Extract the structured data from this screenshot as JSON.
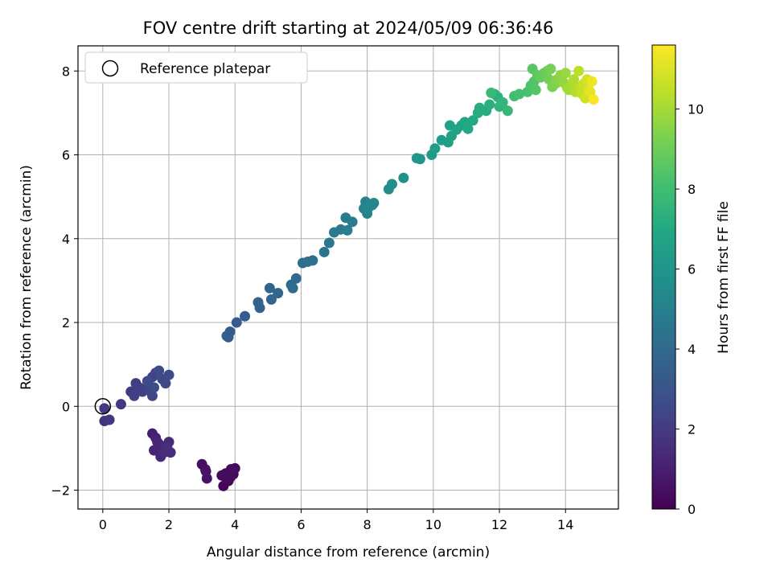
{
  "chart_data": {
    "type": "scatter",
    "title": "FOV centre drift starting at 2024/05/09 06:36:46",
    "xlabel": "Angular distance from reference (arcmin)",
    "ylabel": "Rotation from reference (arcmin)",
    "xlim": [
      -0.75,
      15.6
    ],
    "ylim": [
      -2.45,
      8.6
    ],
    "x_ticks": [
      0,
      2,
      4,
      6,
      8,
      10,
      12,
      14
    ],
    "y_ticks": [
      -2,
      0,
      2,
      4,
      6,
      8
    ],
    "grid": true,
    "legend": {
      "position": "top-left",
      "entries": [
        "Reference platepar"
      ]
    },
    "reference_point": {
      "x": 0,
      "y": 0
    },
    "colorbar": {
      "label": "Hours from first FF file",
      "colormap": "viridis",
      "range": [
        0,
        11.6
      ],
      "ticks": [
        0,
        2,
        4,
        6,
        8,
        10
      ]
    },
    "points": [
      [
        3.65,
        -1.9,
        0.1
      ],
      [
        3.8,
        -1.78,
        0.15
      ],
      [
        3.72,
        -1.6,
        0.2
      ],
      [
        3.9,
        -1.55,
        0.22
      ],
      [
        3.85,
        -1.7,
        0.25
      ],
      [
        3.95,
        -1.62,
        0.27
      ],
      [
        4.0,
        -1.48,
        0.3
      ],
      [
        3.75,
        -1.72,
        0.33
      ],
      [
        3.6,
        -1.65,
        0.36
      ],
      [
        3.88,
        -1.5,
        0.4
      ],
      [
        3.0,
        -1.38,
        0.45
      ],
      [
        3.1,
        -1.5,
        0.5
      ],
      [
        3.15,
        -1.72,
        0.55
      ],
      [
        3.12,
        -1.55,
        0.6
      ],
      [
        1.5,
        -0.65,
        1.0
      ],
      [
        1.6,
        -0.75,
        1.05
      ],
      [
        1.7,
        -0.9,
        1.1
      ],
      [
        1.8,
        -1.0,
        1.15
      ],
      [
        1.65,
        -0.85,
        1.2
      ],
      [
        1.55,
        -1.05,
        1.25
      ],
      [
        1.75,
        -1.2,
        1.3
      ],
      [
        1.9,
        -0.95,
        1.35
      ],
      [
        2.0,
        -0.85,
        1.4
      ],
      [
        2.05,
        -1.1,
        1.45
      ],
      [
        1.85,
        -1.1,
        1.5
      ],
      [
        1.95,
        -1.0,
        1.55
      ],
      [
        0.05,
        -0.35,
        1.75
      ],
      [
        0.2,
        -0.32,
        1.8
      ],
      [
        0.55,
        0.05,
        1.9
      ],
      [
        0.05,
        -0.05,
        1.85
      ],
      [
        0.85,
        0.35,
        2.0
      ],
      [
        1.0,
        0.55,
        2.05
      ],
      [
        1.1,
        0.45,
        2.1
      ],
      [
        1.2,
        0.35,
        2.15
      ],
      [
        0.95,
        0.25,
        2.2
      ],
      [
        1.4,
        0.5,
        2.25
      ],
      [
        1.5,
        0.7,
        2.3
      ],
      [
        1.6,
        0.8,
        2.35
      ],
      [
        1.45,
        0.35,
        2.4
      ],
      [
        1.5,
        0.25,
        2.45
      ],
      [
        1.8,
        0.65,
        2.5
      ],
      [
        1.9,
        0.55,
        2.55
      ],
      [
        2.0,
        0.75,
        2.6
      ],
      [
        1.7,
        0.85,
        2.62
      ],
      [
        1.55,
        0.45,
        2.65
      ],
      [
        1.35,
        0.6,
        2.68
      ],
      [
        3.8,
        1.65,
        3.2
      ],
      [
        3.85,
        1.78,
        3.25
      ],
      [
        4.05,
        2.0,
        3.3
      ],
      [
        4.3,
        2.15,
        3.35
      ],
      [
        3.75,
        1.68,
        3.38
      ],
      [
        4.7,
        2.48,
        3.6
      ],
      [
        4.75,
        2.35,
        3.65
      ],
      [
        5.05,
        2.82,
        3.75
      ],
      [
        5.3,
        2.7,
        3.8
      ],
      [
        5.1,
        2.55,
        3.85
      ],
      [
        5.7,
        2.9,
        4.0
      ],
      [
        5.85,
        3.05,
        4.05
      ],
      [
        5.75,
        2.82,
        4.1
      ],
      [
        6.05,
        3.42,
        4.2
      ],
      [
        6.2,
        3.45,
        4.25
      ],
      [
        6.35,
        3.48,
        4.3
      ],
      [
        6.7,
        3.68,
        4.5
      ],
      [
        6.85,
        3.9,
        4.6
      ],
      [
        7.0,
        4.15,
        4.7
      ],
      [
        7.2,
        4.22,
        4.75
      ],
      [
        7.35,
        4.5,
        4.8
      ],
      [
        7.4,
        4.2,
        4.85
      ],
      [
        7.55,
        4.4,
        4.9
      ],
      [
        7.9,
        4.72,
        5.1
      ],
      [
        7.95,
        4.88,
        5.15
      ],
      [
        8.0,
        4.6,
        5.2
      ],
      [
        8.15,
        4.8,
        5.25
      ],
      [
        8.2,
        4.85,
        5.3
      ],
      [
        8.05,
        4.75,
        5.35
      ],
      [
        8.65,
        5.18,
        5.6
      ],
      [
        8.75,
        5.3,
        5.65
      ],
      [
        9.1,
        5.45,
        5.8
      ],
      [
        9.5,
        5.92,
        6.0
      ],
      [
        9.6,
        5.9,
        6.05
      ],
      [
        9.95,
        6.0,
        6.3
      ],
      [
        10.05,
        6.15,
        6.35
      ],
      [
        10.25,
        6.35,
        6.45
      ],
      [
        10.45,
        6.3,
        6.55
      ],
      [
        10.55,
        6.45,
        6.6
      ],
      [
        10.5,
        6.7,
        6.65
      ],
      [
        10.7,
        6.6,
        6.7
      ],
      [
        10.85,
        6.7,
        6.8
      ],
      [
        10.95,
        6.78,
        6.9
      ],
      [
        11.05,
        6.62,
        6.95
      ],
      [
        11.2,
        6.82,
        7.0
      ],
      [
        11.35,
        7.0,
        7.1
      ],
      [
        11.4,
        7.12,
        7.15
      ],
      [
        11.6,
        7.05,
        7.2
      ],
      [
        11.7,
        7.2,
        7.3
      ],
      [
        11.85,
        7.45,
        7.35
      ],
      [
        11.95,
        7.38,
        7.4
      ],
      [
        12.0,
        7.15,
        7.5
      ],
      [
        12.1,
        7.25,
        7.6
      ],
      [
        12.25,
        7.05,
        7.7
      ],
      [
        11.75,
        7.48,
        7.8
      ],
      [
        12.45,
        7.4,
        8.0
      ],
      [
        12.6,
        7.45,
        8.1
      ],
      [
        12.85,
        7.5,
        8.2
      ],
      [
        12.95,
        7.65,
        8.3
      ],
      [
        13.05,
        7.75,
        8.4
      ],
      [
        13.1,
        7.55,
        8.5
      ],
      [
        13.0,
        8.05,
        8.6
      ],
      [
        13.15,
        7.9,
        8.7
      ],
      [
        13.25,
        7.85,
        8.8
      ],
      [
        13.35,
        7.95,
        8.9
      ],
      [
        13.45,
        8.0,
        9.0
      ],
      [
        13.5,
        7.8,
        9.1
      ],
      [
        13.55,
        8.05,
        9.2
      ],
      [
        13.6,
        7.62,
        9.3
      ],
      [
        13.7,
        7.7,
        9.4
      ],
      [
        13.75,
        7.8,
        9.5
      ],
      [
        13.85,
        7.9,
        9.6
      ],
      [
        13.95,
        7.72,
        9.7
      ],
      [
        14.0,
        7.95,
        9.8
      ],
      [
        14.05,
        7.6,
        9.9
      ],
      [
        14.1,
        7.55,
        10.0
      ],
      [
        14.2,
        7.7,
        10.1
      ],
      [
        14.25,
        7.8,
        10.2
      ],
      [
        14.3,
        7.5,
        10.3
      ],
      [
        14.4,
        8.0,
        10.4
      ],
      [
        14.45,
        7.62,
        10.5
      ],
      [
        14.5,
        7.45,
        10.6
      ],
      [
        14.55,
        7.7,
        10.7
      ],
      [
        14.6,
        7.35,
        10.8
      ],
      [
        14.65,
        7.8,
        10.9
      ],
      [
        14.7,
        7.55,
        11.0
      ],
      [
        14.75,
        7.5,
        11.2
      ],
      [
        14.8,
        7.75,
        11.35
      ],
      [
        14.85,
        7.32,
        11.5
      ]
    ]
  }
}
